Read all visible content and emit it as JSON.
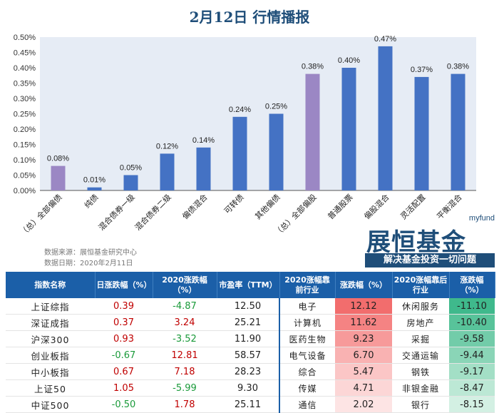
{
  "title": "2月12日  行情播报",
  "chart_data": {
    "type": "bar",
    "categories": [
      "（总）全部偏债",
      "纯债",
      "混合债券一级",
      "混合债券二级",
      "偏债混合",
      "可转债",
      "其他偏债",
      "（总）全部偏股",
      "普通股票",
      "偏股混合",
      "灵活配置",
      "平衡混合"
    ],
    "values": [
      0.08,
      0.01,
      0.05,
      0.12,
      0.14,
      0.24,
      0.25,
      0.38,
      0.4,
      0.47,
      0.37,
      0.38
    ],
    "value_labels": [
      "0.08%",
      "0.01%",
      "0.05%",
      "0.12%",
      "0.14%",
      "0.24%",
      "0.25%",
      "0.38%",
      "0.40%",
      "0.47%",
      "0.37%",
      "0.38%"
    ],
    "yticks": [
      "0.00%",
      "0.05%",
      "0.10%",
      "0.15%",
      "0.20%",
      "0.25%",
      "0.30%",
      "0.35%",
      "0.40%",
      "0.45%",
      "0.50%"
    ],
    "ylim": [
      0,
      0.5
    ],
    "bar_colors": [
      "#9b87c4",
      "#4472c4",
      "#4472c4",
      "#4472c4",
      "#4472c4",
      "#4472c4",
      "#4472c4",
      "#9b87c4",
      "#4472c4",
      "#4472c4",
      "#4472c4",
      "#4472c4"
    ],
    "plot_background": "#e6ecf5",
    "grid": false
  },
  "source": {
    "line1": "数据来源：展恒基金研究中心",
    "line2": "数据日期：2020年2月11日"
  },
  "logo": {
    "en": "myfund",
    "cn": "展恒基金",
    "slogan": "解决基金投资一切问题"
  },
  "table": {
    "headers": {
      "name": "指数名称",
      "day": "日涨跌幅（%）",
      "ytd": "2020涨跌幅（%）",
      "pe": "市盈率（TTM）",
      "top_ind": "2020涨幅靠前行业",
      "top_chg": "涨跌幅（%）",
      "bot_ind": "2020涨幅靠后行业",
      "bot_chg": "涨跌幅（%）"
    },
    "rows": [
      {
        "name": "上证综指",
        "day": "0.39",
        "ytd": "-4.87",
        "pe": "12.50",
        "top_ind": "电子",
        "top_chg": "12.12",
        "bot_ind": "休闲服务",
        "bot_chg": "-11.10"
      },
      {
        "name": "深证成指",
        "day": "0.37",
        "ytd": "3.24",
        "pe": "25.21",
        "top_ind": "计算机",
        "top_chg": "11.62",
        "bot_ind": "房地产",
        "bot_chg": "-10.40"
      },
      {
        "name": "沪深300",
        "day": "0.93",
        "ytd": "-3.52",
        "pe": "11.90",
        "top_ind": "医药生物",
        "top_chg": "9.23",
        "bot_ind": "采掘",
        "bot_chg": "-9.58"
      },
      {
        "name": "创业板指",
        "day": "-0.67",
        "ytd": "12.81",
        "pe": "58.57",
        "top_ind": "电气设备",
        "top_chg": "6.70",
        "bot_ind": "交通运输",
        "bot_chg": "-9.44"
      },
      {
        "name": "中小板指",
        "day": "0.67",
        "ytd": "7.18",
        "pe": "28.23",
        "top_ind": "综合",
        "top_chg": "5.47",
        "bot_ind": "钢铁",
        "bot_chg": "-9.17"
      },
      {
        "name": "上证50",
        "day": "1.05",
        "ytd": "-5.99",
        "pe": "9.30",
        "top_ind": "传媒",
        "top_chg": "4.71",
        "bot_ind": "非银金融",
        "bot_chg": "-8.47"
      },
      {
        "name": "中证500",
        "day": "-0.50",
        "ytd": "1.78",
        "pe": "25.11",
        "top_ind": "通信",
        "top_chg": "2.02",
        "bot_ind": "银行",
        "bot_chg": "-8.15"
      }
    ],
    "top_colors": [
      "#f26d6d",
      "#f58383",
      "#f79a9a",
      "#f9b2b2",
      "#fbc6c6",
      "#fcd6d6",
      "#fde4e4"
    ],
    "bot_colors": [
      "#3fb98c",
      "#58c39a",
      "#72cca9",
      "#8ad5b7",
      "#a3dfc6",
      "#bce8d5",
      "#d3f0e3"
    ]
  }
}
